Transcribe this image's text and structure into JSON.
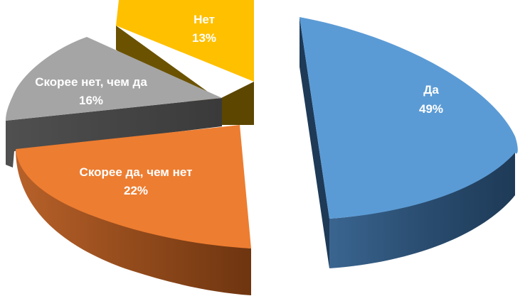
{
  "chart_data": {
    "type": "pie",
    "title": "",
    "exploded": true,
    "three_d": true,
    "slices": [
      {
        "label": "Да",
        "value": 49,
        "value_label": "49%",
        "color": "#5B9BD5",
        "side_color": "#2A4D70"
      },
      {
        "label": "Скорее да, чем нет",
        "value": 22,
        "value_label": "22%",
        "color": "#ED7D31",
        "side_color": "#8A4417"
      },
      {
        "label": "Скорее нет, чем да",
        "value": 16,
        "value_label": "16%",
        "color": "#A5A5A5",
        "side_color": "#3F3F3F"
      },
      {
        "label": "Нет",
        "value": 13,
        "value_label": "13%",
        "color": "#FFC000",
        "side_color": "#6B5200"
      }
    ]
  }
}
